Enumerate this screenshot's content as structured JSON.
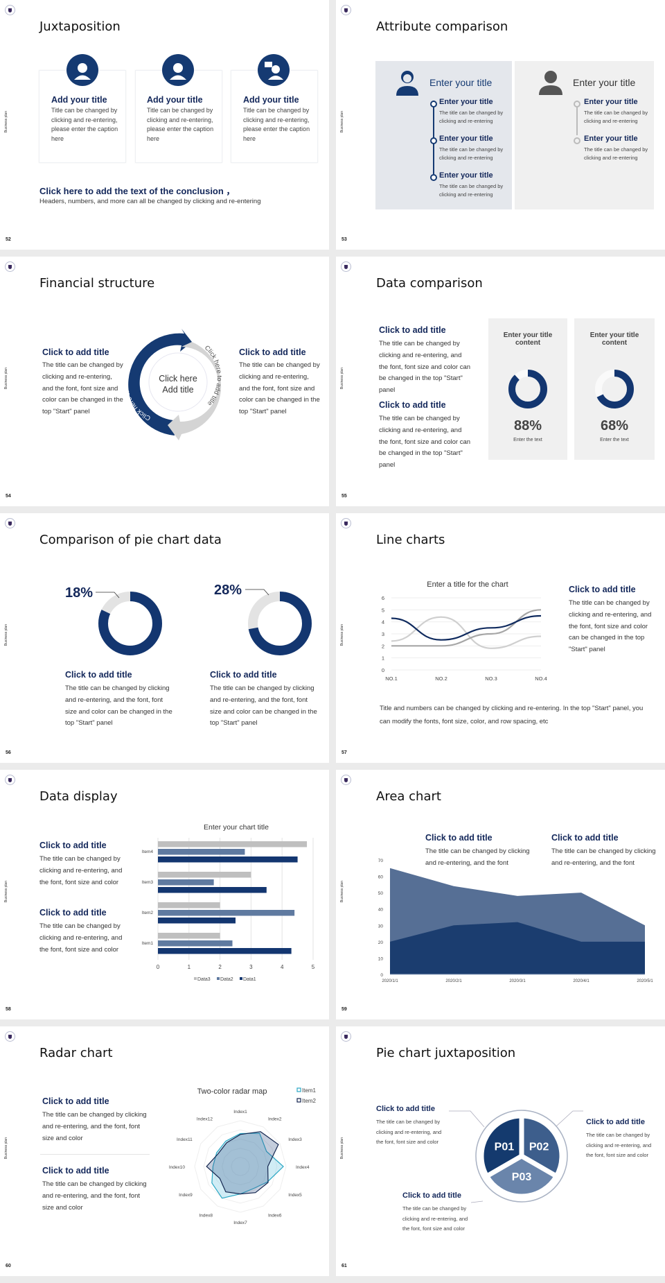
{
  "side_label": "Business plan",
  "colors": {
    "navy": "#133670",
    "mid": "#5a7399",
    "light": "#c0c0c0",
    "gray_bg": "#ebebeb"
  },
  "s52": {
    "page": "52",
    "title": "Juxtaposition",
    "cards": [
      {
        "icon": "headset-agent-icon",
        "title": "Add your title",
        "body": "Title can be changed by clicking and re-entering, please enter the caption here"
      },
      {
        "icon": "businesswoman-icon",
        "title": "Add your title",
        "body": "Title can be changed by clicking and re-entering, please enter the caption here"
      },
      {
        "icon": "consultant-chat-icon",
        "title": "Add your title",
        "body": "Title can be changed by clicking and re-entering, please enter the caption here"
      }
    ],
    "conclusion": "Click here to add the text of the conclusion ，",
    "conclusion_sub": "Headers, numbers, and more can all be changed by clicking and re-entering"
  },
  "s53": {
    "page": "53",
    "title": "Attribute comparison",
    "left": {
      "icon": "woman-user-icon",
      "heading": "Enter your title",
      "items": [
        {
          "title": "Enter your title",
          "body": "The title can be changed by clicking and re-entering"
        },
        {
          "title": "Enter your title",
          "body": "The title can be changed by clicking and re-entering"
        },
        {
          "title": "Enter your title",
          "body": "The title can be changed by clicking and re-entering"
        }
      ]
    },
    "right": {
      "icon": "man-user-icon",
      "heading": "Enter your title",
      "items": [
        {
          "title": "Enter your title",
          "body": "The title can be changed by clicking and re-entering"
        },
        {
          "title": "Enter your title",
          "body": "The title can be changed by clicking and re-entering"
        }
      ]
    }
  },
  "s54": {
    "page": "54",
    "title": "Financial structure",
    "left": {
      "title": "Click to add title",
      "body": "The title can be changed by clicking and re-entering, and the font, font size and color can be changed in the top \"Start\" panel"
    },
    "right": {
      "title": "Click to add title",
      "body": "The title can be changed by clicking and re-entering, and the font, font size and color can be changed in the top \"Start\" panel"
    },
    "arc_left": "Click here to add title",
    "arc_right": "Click here to add title",
    "center1": "Click here",
    "center2": "Add title"
  },
  "s55": {
    "page": "55",
    "title": "Data comparison",
    "blocks": [
      {
        "title": "Click to add title",
        "body": "The title can be changed by clicking and re-entering, and the font, font size and color can be changed in the top \"Start\" panel"
      },
      {
        "title": "Click to add title",
        "body": "The title can be changed by clicking and re-entering, and the font, font size and color can be changed in the top \"Start\" panel"
      }
    ],
    "cards": [
      {
        "title": "Enter your title content",
        "value": 88,
        "label": "88%",
        "caption": "Enter the text"
      },
      {
        "title": "Enter your title content",
        "value": 68,
        "label": "68%",
        "caption": "Enter the text"
      }
    ]
  },
  "s56": {
    "page": "56",
    "title": "Comparison of pie chart data",
    "pies": [
      {
        "value": 18,
        "label": "18%",
        "title": "Click to add title",
        "body": "The title can be changed by clicking and re-entering, and the font, font size and color can be changed in the top \"Start\" panel"
      },
      {
        "value": 28,
        "label": "28%",
        "title": "Click to add title",
        "body": "The title can be changed by clicking and re-entering, and the font, font size and color can be changed in the top \"Start\" panel"
      }
    ]
  },
  "s57": {
    "page": "57",
    "title": "Line charts",
    "side": {
      "title": "Click to add title",
      "body": "The title can be changed by clicking and re-entering, and the font, font size and color can be changed in the top \"Start\" panel"
    },
    "footer": "Title and numbers can be changed by clicking and re-entering. In the top \"Start\" panel, you can modify the fonts, font size, color, and row spacing, etc"
  },
  "s58": {
    "page": "58",
    "title": "Data display",
    "blocks": [
      {
        "title": "Click to add title",
        "body": "The title can be changed by clicking and re-entering, and the font, font size and color"
      },
      {
        "title": "Click to add title",
        "body": "The title can be changed by clicking and re-entering, and the font, font size and color"
      }
    ]
  },
  "s59": {
    "page": "59",
    "title": "Area chart",
    "blocks": [
      {
        "title": "Click to add title",
        "body": "The title can be changed by clicking and re-entering, and the font"
      },
      {
        "title": "Click to add title",
        "body": "The title can be changed by clicking and re-entering, and the font"
      }
    ]
  },
  "s60": {
    "page": "60",
    "title": "Radar chart",
    "blocks": [
      {
        "title": "Click to add title",
        "body": "The title can be changed by clicking and re-entering, and the font, font size and color"
      },
      {
        "title": "Click to add title",
        "body": "The title can be changed by clicking and re-entering, and the font, font size and color"
      }
    ]
  },
  "s61": {
    "page": "61",
    "title": "Pie chart juxtaposition",
    "segments": [
      "P01",
      "P02",
      "P03"
    ],
    "blocks": [
      {
        "title": "Click to add title",
        "body": "The title can be changed by clicking and re-entering, and the font, font size and color"
      },
      {
        "title": "Click to add title",
        "body": "The title can be changed by clicking and re-entering, and the font, font size and color"
      },
      {
        "title": "Click to add title",
        "body": "The title can be changed by clicking and re-entering, and the font, font size and color"
      }
    ]
  },
  "chart_data": [
    {
      "type": "line",
      "title": "Enter a title for the chart",
      "categories": [
        "NO.1",
        "NO.2",
        "NO.3",
        "NO.4"
      ],
      "ylim": [
        0,
        6
      ],
      "yticks": [
        0,
        1,
        2,
        3,
        4,
        5,
        6
      ],
      "grid": true,
      "smooth": true,
      "series": [
        {
          "values": [
            4.3,
            2.5,
            3.5,
            4.5
          ],
          "color": "#0f2a5e"
        },
        {
          "values": [
            2.4,
            4.4,
            1.8,
            2.8
          ],
          "color": "#cfcfcf"
        },
        {
          "values": [
            2,
            2,
            3,
            5
          ],
          "color": "#a6a6a6"
        }
      ]
    },
    {
      "type": "bar",
      "orientation": "horizontal",
      "title": "Enter your chart title",
      "categories": [
        "Item1",
        "Item2",
        "Item3",
        "Item4"
      ],
      "xlim": [
        0,
        5
      ],
      "xticks": [
        0,
        1,
        2,
        3,
        4,
        5
      ],
      "grid": true,
      "legend": "bottom",
      "series": [
        {
          "name": "Data3",
          "values": [
            2,
            2,
            3,
            4.8
          ],
          "color": "#bfbfbf"
        },
        {
          "name": "Data2",
          "values": [
            2.4,
            4.4,
            1.8,
            2.8
          ],
          "color": "#5f7aa0"
        },
        {
          "name": "Data1",
          "values": [
            4.3,
            2.5,
            3.5,
            4.5
          ],
          "color": "#133670"
        }
      ]
    },
    {
      "type": "area",
      "categories": [
        "2020/1/1",
        "2020/2/1",
        "2020/3/1",
        "2020/4/1",
        "2020/5/1"
      ],
      "ylim": [
        0,
        70
      ],
      "yticks": [
        0,
        10,
        20,
        30,
        40,
        50,
        60,
        70
      ],
      "series": [
        {
          "values": [
            65,
            54,
            48,
            50,
            30
          ],
          "color": "#566f95"
        },
        {
          "values": [
            20,
            30,
            32,
            20,
            20
          ],
          "color": "#1b3d6f"
        }
      ]
    },
    {
      "type": "radar",
      "title": "Two-color radar map",
      "axes": [
        "Index1",
        "Index2",
        "Index3",
        "Index4",
        "Index5",
        "Index6",
        "Index7",
        "Index8",
        "Index9",
        "Index10",
        "Index11",
        "Index12"
      ],
      "rmax": 5,
      "legend": "top-right",
      "series": [
        {
          "name": "Item1",
          "values": [
            3.6,
            4.2,
            3.3,
            4.7,
            3.4,
            2.8,
            3.0,
            4.0,
            3.6,
            3.0,
            3.0,
            3.2
          ],
          "color": "#2aa7c4"
        },
        {
          "name": "Item2",
          "values": [
            3.5,
            4.4,
            4.8,
            3.0,
            3.5,
            3.3,
            3.0,
            3.2,
            2.6,
            3.7,
            2.8,
            3.0
          ],
          "color": "#14264f"
        }
      ]
    }
  ]
}
